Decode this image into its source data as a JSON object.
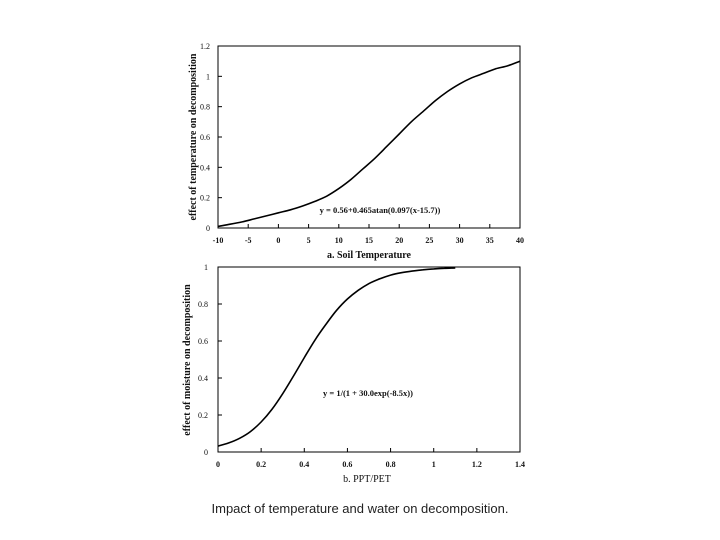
{
  "caption": "Impact of temperature and water on decomposition.",
  "chart_data": [
    {
      "type": "line",
      "xlabel": "a. Soil Temperature",
      "ylabel": "effect of temperature on decomposition",
      "xlim": [
        -10,
        40
      ],
      "ylim": [
        0,
        1.2
      ],
      "xticks": [
        -10,
        -5,
        0,
        5,
        10,
        15,
        20,
        25,
        30,
        35,
        40
      ],
      "xtick_labels": [
        "-10",
        "-5",
        "0",
        "5",
        "10",
        "15",
        "20",
        "25",
        "30",
        "35",
        "40"
      ],
      "yticks": [
        0,
        0.2,
        0.4,
        0.6,
        0.8,
        1,
        1.2
      ],
      "ytick_labels": [
        "0",
        "0.2",
        "0.4",
        "0.6",
        "0.8",
        "1",
        "1.2"
      ],
      "annotation": "y = 0.56+0.465atan(0.097(x-15.7))",
      "series": [
        {
          "x": [
            -10,
            -8,
            -6,
            -4,
            -2,
            0,
            2,
            4,
            6,
            8,
            10,
            12,
            14,
            16,
            18,
            20,
            22,
            24,
            26,
            28,
            30,
            32,
            34,
            36,
            38,
            40
          ],
          "y": [
            0.01,
            0.025,
            0.04,
            0.06,
            0.08,
            0.1,
            0.12,
            0.145,
            0.175,
            0.21,
            0.26,
            0.32,
            0.39,
            0.46,
            0.54,
            0.62,
            0.7,
            0.77,
            0.84,
            0.9,
            0.95,
            0.99,
            1.02,
            1.05,
            1.07,
            1.1
          ]
        }
      ]
    },
    {
      "type": "line",
      "xlabel": "b. PPT/PET",
      "ylabel": "effect of moisture on decomposition",
      "xlim": [
        0,
        1.4
      ],
      "ylim": [
        0,
        1
      ],
      "xticks": [
        0,
        0.2,
        0.4,
        0.6,
        0.8,
        1,
        1.2,
        1.4
      ],
      "xtick_labels": [
        "0",
        "0.2",
        "0.4",
        "0.6",
        "0.8",
        "1",
        "1.2",
        "1.4"
      ],
      "yticks": [
        0,
        0.2,
        0.4,
        0.6,
        0.8,
        1
      ],
      "ytick_labels": [
        "0",
        "0.2",
        "0.4",
        "0.6",
        "0.8",
        "1"
      ],
      "annotation": "y = 1/(1 + 30.0exp(-8.5x))",
      "series": [
        {
          "x": [
            0,
            0.05,
            0.1,
            0.15,
            0.2,
            0.25,
            0.3,
            0.35,
            0.4,
            0.45,
            0.5,
            0.55,
            0.6,
            0.65,
            0.7,
            0.75,
            0.8,
            0.85,
            0.9,
            0.95,
            1,
            1.05,
            1.1
          ],
          "y": [
            0.032,
            0.049,
            0.074,
            0.11,
            0.162,
            0.23,
            0.315,
            0.411,
            0.51,
            0.606,
            0.69,
            0.766,
            0.827,
            0.874,
            0.91,
            0.936,
            0.956,
            0.969,
            0.978,
            0.985,
            0.99,
            0.993,
            0.995
          ]
        }
      ]
    }
  ]
}
